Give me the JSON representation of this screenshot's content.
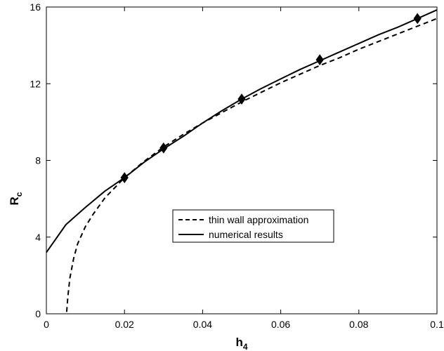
{
  "chart_data": {
    "type": "line",
    "title": "",
    "xlabel": "h",
    "xlabel_sub": "4",
    "ylabel": "R",
    "ylabel_sub": "c",
    "xlim": [
      0,
      0.1
    ],
    "ylim": [
      0,
      16
    ],
    "xticks": [
      0,
      0.02,
      0.04,
      0.06,
      0.08,
      0.1
    ],
    "xtick_labels": [
      "0",
      "0.02",
      "0.04",
      "0.06",
      "0.08",
      "0.1"
    ],
    "yticks": [
      0,
      4,
      8,
      12,
      16
    ],
    "ytick_labels": [
      "0",
      "4",
      "8",
      "12",
      "16"
    ],
    "grid": false,
    "legend_position": "center-right",
    "series": [
      {
        "name": "thin wall approximation",
        "style": "dashed",
        "color": "#000000",
        "x": [
          0.0052,
          0.0055,
          0.006,
          0.007,
          0.008,
          0.01,
          0.012,
          0.015,
          0.02,
          0.025,
          0.03,
          0.035,
          0.04,
          0.045,
          0.05,
          0.055,
          0.06,
          0.065,
          0.07,
          0.075,
          0.08,
          0.085,
          0.09,
          0.095,
          0.1
        ],
        "y": [
          0.1,
          0.9,
          1.85,
          2.9,
          3.65,
          4.55,
          5.2,
          6.05,
          7.1,
          7.95,
          8.7,
          9.35,
          9.95,
          10.5,
          11.05,
          11.55,
          12.05,
          12.5,
          12.95,
          13.35,
          13.8,
          14.2,
          14.6,
          15.0,
          15.4
        ]
      },
      {
        "name": "numerical results",
        "style": "solid",
        "color": "#000000",
        "x": [
          0,
          0.005,
          0.01,
          0.015,
          0.02,
          0.025,
          0.03,
          0.035,
          0.04,
          0.045,
          0.05,
          0.055,
          0.06,
          0.065,
          0.07,
          0.075,
          0.08,
          0.085,
          0.09,
          0.095,
          0.1
        ],
        "y": [
          3.2,
          4.65,
          5.55,
          6.4,
          7.1,
          7.9,
          8.6,
          9.25,
          9.95,
          10.6,
          11.2,
          11.75,
          12.25,
          12.75,
          13.2,
          13.65,
          14.1,
          14.55,
          14.95,
          15.4,
          15.85
        ]
      }
    ],
    "markers": {
      "series": "numerical results",
      "shape": "diamond",
      "x": [
        0.02,
        0.03,
        0.05,
        0.07,
        0.095
      ],
      "y": [
        7.1,
        8.65,
        11.2,
        13.25,
        15.4
      ]
    }
  }
}
